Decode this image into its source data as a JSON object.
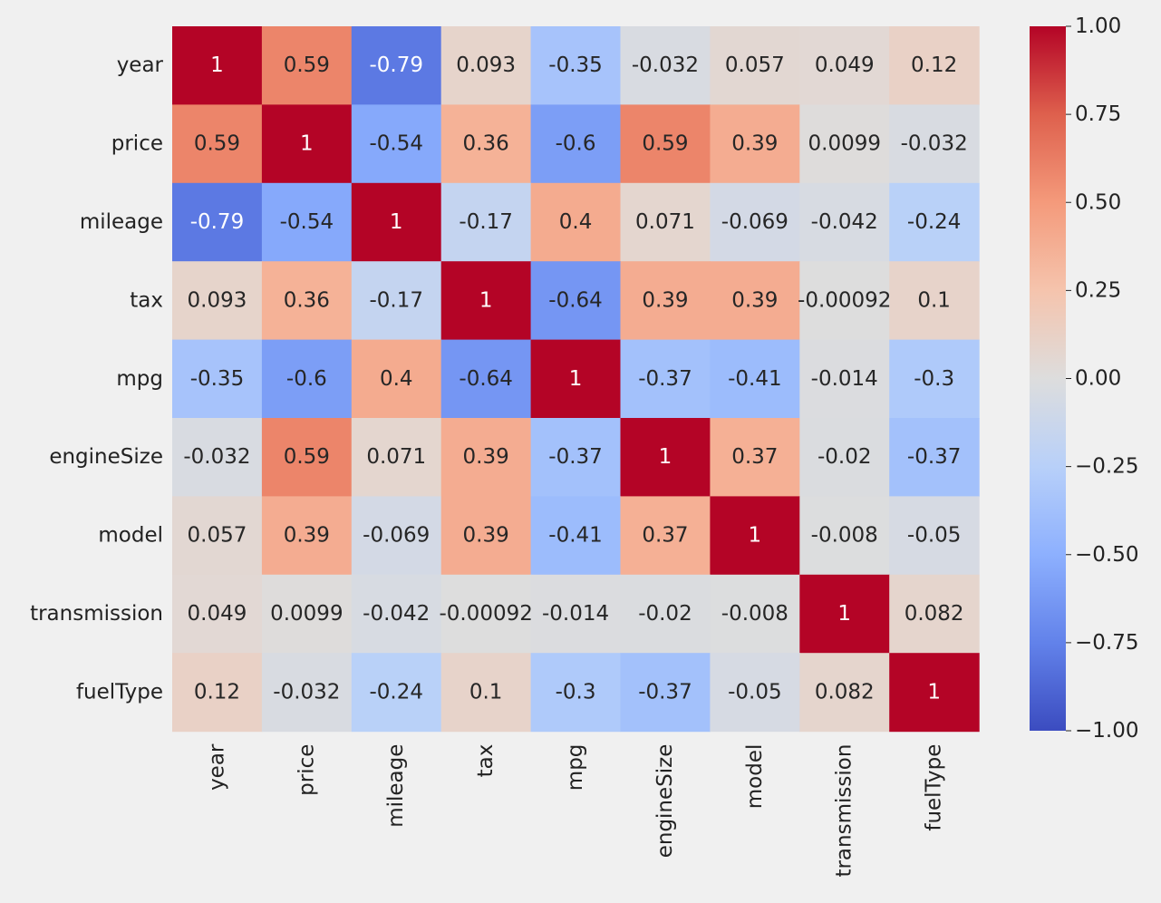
{
  "chart_data": {
    "type": "heatmap",
    "title": "",
    "xlabel": "",
    "ylabel": "",
    "colormap": "coolwarm",
    "vmin": -1.0,
    "vmax": 1.0,
    "background": "#f0f0f0",
    "row_labels": [
      "year",
      "price",
      "mileage",
      "tax",
      "mpg",
      "engineSize",
      "model",
      "transmission",
      "fuelType"
    ],
    "col_labels": [
      "year",
      "price",
      "mileage",
      "tax",
      "mpg",
      "engineSize",
      "model",
      "transmission",
      "fuelType"
    ],
    "values": [
      [
        1,
        0.59,
        -0.79,
        0.093,
        -0.35,
        -0.032,
        0.057,
        0.049,
        0.12
      ],
      [
        0.59,
        1,
        -0.54,
        0.36,
        -0.6,
        0.59,
        0.39,
        0.0099,
        -0.032
      ],
      [
        -0.79,
        -0.54,
        1,
        -0.17,
        0.4,
        0.071,
        -0.069,
        -0.042,
        -0.24
      ],
      [
        0.093,
        0.36,
        -0.17,
        1,
        -0.64,
        0.39,
        0.39,
        -0.00092,
        0.1
      ],
      [
        -0.35,
        -0.6,
        0.4,
        -0.64,
        1,
        -0.37,
        -0.41,
        -0.014,
        -0.3
      ],
      [
        -0.032,
        0.59,
        0.071,
        0.39,
        -0.37,
        1,
        0.37,
        -0.02,
        -0.37
      ],
      [
        0.057,
        0.39,
        -0.069,
        0.39,
        -0.41,
        0.37,
        1,
        -0.008,
        -0.05
      ],
      [
        0.049,
        0.0099,
        -0.042,
        -0.00092,
        -0.014,
        -0.02,
        -0.008,
        1,
        0.082
      ],
      [
        0.12,
        -0.032,
        -0.24,
        0.1,
        -0.3,
        -0.37,
        -0.05,
        0.082,
        1
      ]
    ],
    "annotations": [
      [
        "1",
        "0.59",
        "-0.79",
        "0.093",
        "-0.35",
        "-0.032",
        "0.057",
        "0.049",
        "0.12"
      ],
      [
        "0.59",
        "1",
        "-0.54",
        "0.36",
        "-0.6",
        "0.59",
        "0.39",
        "0.0099",
        "-0.032"
      ],
      [
        "-0.79",
        "-0.54",
        "1",
        "-0.17",
        "0.4",
        "0.071",
        "-0.069",
        "-0.042",
        "-0.24"
      ],
      [
        "0.093",
        "0.36",
        "-0.17",
        "1",
        "-0.64",
        "0.39",
        "0.39",
        "-0.00092",
        "0.1"
      ],
      [
        "-0.35",
        "-0.6",
        "0.4",
        "-0.64",
        "1",
        "-0.37",
        "-0.41",
        "-0.014",
        "-0.3"
      ],
      [
        "-0.032",
        "0.59",
        "0.071",
        "0.39",
        "-0.37",
        "1",
        "0.37",
        "-0.02",
        "-0.37"
      ],
      [
        "0.057",
        "0.39",
        "-0.069",
        "0.39",
        "-0.41",
        "0.37",
        "1",
        "-0.008",
        "-0.05"
      ],
      [
        "0.049",
        "0.0099",
        "-0.042",
        "-0.00092",
        "-0.014",
        "-0.02",
        "-0.008",
        "1",
        "0.082"
      ],
      [
        "0.12",
        "-0.032",
        "-0.24",
        "0.1",
        "-0.3",
        "-0.37",
        "-0.05",
        "0.082",
        "1"
      ]
    ],
    "colorbar": {
      "ticks": [
        1.0,
        0.75,
        0.5,
        0.25,
        0.0,
        -0.25,
        -0.5,
        -0.75,
        -1.0
      ],
      "tick_labels": [
        "1.00",
        "0.75",
        "0.50",
        "0.25",
        "0.00",
        "−0.25",
        "−0.50",
        "−0.75",
        "−1.00"
      ]
    }
  }
}
